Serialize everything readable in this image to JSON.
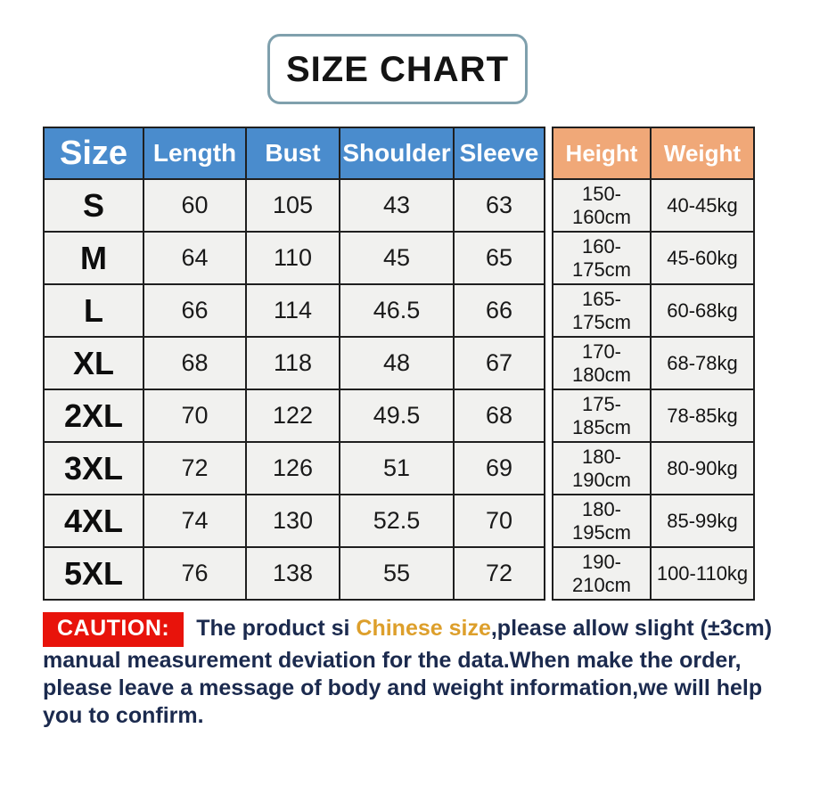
{
  "title": "SIZE CHART",
  "colors": {
    "header_blue": "#4a8ccd",
    "header_orange": "#f0a878",
    "cell_background": "#f1f1ef",
    "table_border": "#1f1f1f",
    "caution_red": "#e8130b",
    "caution_text_navy": "#1b2a4e",
    "caution_highlight_gold": "#dd9f2b",
    "title_border": "#7fa0ad"
  },
  "table": {
    "main_headers": [
      "Size",
      "Length",
      "Bust",
      "Shoulder",
      "Sleeve"
    ],
    "hw_headers": [
      "Height",
      "Weight"
    ],
    "rows": [
      {
        "size": "S",
        "length": "60",
        "bust": "105",
        "shoulder": "43",
        "sleeve": "63",
        "height": "150-160cm",
        "weight": "40-45kg"
      },
      {
        "size": "M",
        "length": "64",
        "bust": "110",
        "shoulder": "45",
        "sleeve": "65",
        "height": "160-175cm",
        "weight": "45-60kg"
      },
      {
        "size": "L",
        "length": "66",
        "bust": "114",
        "shoulder": "46.5",
        "sleeve": "66",
        "height": "165-175cm",
        "weight": "60-68kg"
      },
      {
        "size": "XL",
        "length": "68",
        "bust": "118",
        "shoulder": "48",
        "sleeve": "67",
        "height": "170-180cm",
        "weight": "68-78kg"
      },
      {
        "size": "2XL",
        "length": "70",
        "bust": "122",
        "shoulder": "49.5",
        "sleeve": "68",
        "height": "175-185cm",
        "weight": "78-85kg"
      },
      {
        "size": "3XL",
        "length": "72",
        "bust": "126",
        "shoulder": "51",
        "sleeve": "69",
        "height": "180-190cm",
        "weight": "80-90kg"
      },
      {
        "size": "4XL",
        "length": "74",
        "bust": "130",
        "shoulder": "52.5",
        "sleeve": "70",
        "height": "180-195cm",
        "weight": "85-99kg"
      },
      {
        "size": "5XL",
        "length": "76",
        "bust": "138",
        "shoulder": "55",
        "sleeve": "72",
        "height": "190-210cm",
        "weight": "100-110kg"
      }
    ]
  },
  "caution": {
    "label": "CAUTION:",
    "line1_pre": "The product si ",
    "line1_highlight": "Chinese size",
    "line1_post": ",please allow slight (±3cm)",
    "line2": "manual measurement deviation for the data.When make the order,",
    "line3": "please leave a message of body and weight information,we will help",
    "line4": "you to confirm."
  }
}
